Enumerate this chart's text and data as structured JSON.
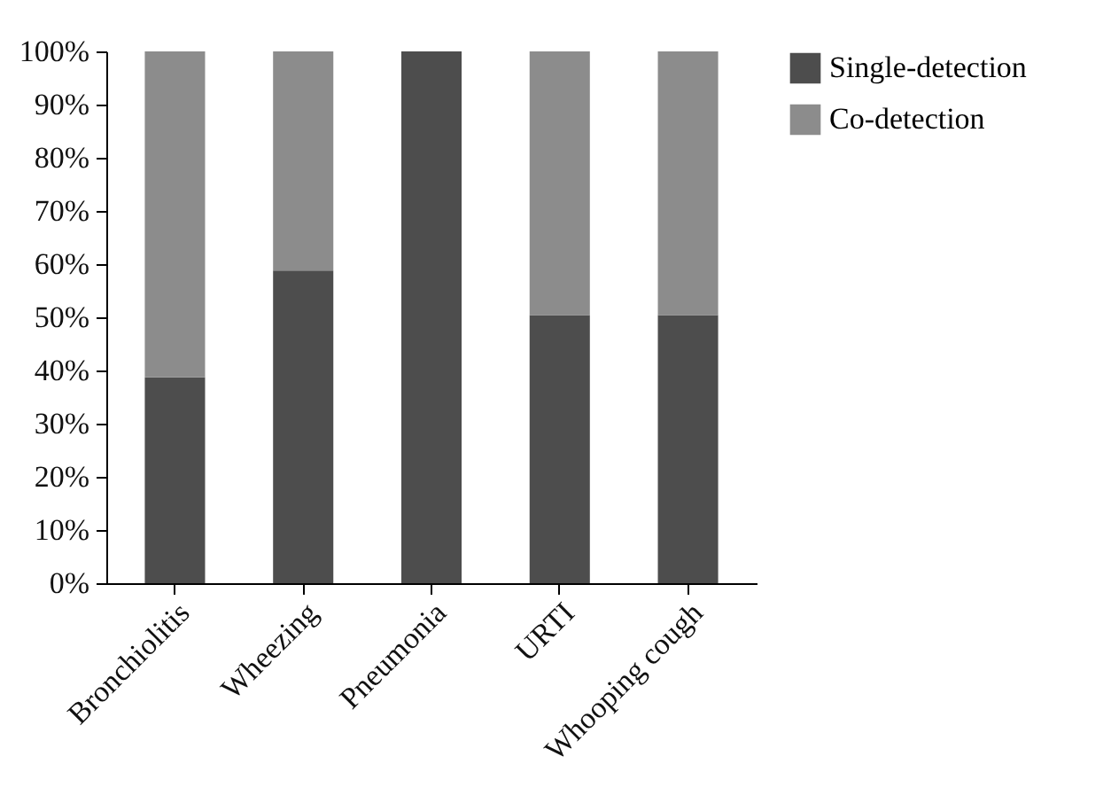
{
  "chart_data": {
    "type": "bar",
    "stacked": true,
    "categories": [
      "Bronchiolitis",
      "Wheezing",
      "Pneumonia",
      "URTI",
      "Whooping cough"
    ],
    "series": [
      {
        "name": "Single-detection",
        "color": "#4d4d4d",
        "values": [
          38.7,
          58.8,
          100,
          50.4,
          50.4
        ]
      },
      {
        "name": "Co-detection",
        "color": "#8c8c8c",
        "values": [
          61.3,
          41.2,
          0,
          49.6,
          49.6
        ]
      }
    ],
    "ylim": [
      0,
      100
    ],
    "yticks": [
      {
        "value": 0,
        "label": "0%"
      },
      {
        "value": 10,
        "label": "10%"
      },
      {
        "value": 20,
        "label": "20%"
      },
      {
        "value": 30,
        "label": "30%"
      },
      {
        "value": 40,
        "label": "40%"
      },
      {
        "value": 50,
        "label": "50%"
      },
      {
        "value": 60,
        "label": "60%"
      },
      {
        "value": 70,
        "label": "70%"
      },
      {
        "value": 80,
        "label": "80%"
      },
      {
        "value": 90,
        "label": "90%"
      },
      {
        "value": 100,
        "label": "100%"
      }
    ],
    "grid": false,
    "legend": "right"
  }
}
